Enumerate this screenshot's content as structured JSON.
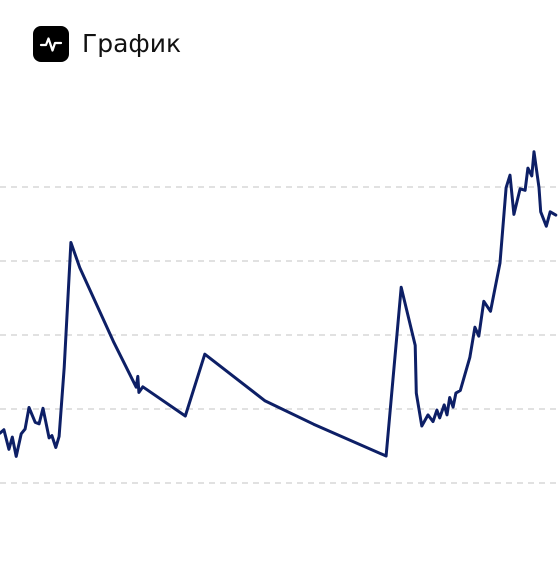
{
  "header": {
    "title": "График",
    "icon": "activity-pulse-icon"
  },
  "colors": {
    "line": "#0d1f66",
    "grid": "#cfcfcf",
    "icon_bg": "#000000",
    "icon_fg": "#ffffff"
  },
  "chart_data": {
    "type": "line",
    "title": "График",
    "xlabel": "",
    "ylabel": "",
    "grid": "horizontal-dashed",
    "axis_labels_visible": false,
    "xlim": [
      0,
      100
    ],
    "ylim": [
      0,
      100
    ],
    "gridlines_y": [
      0,
      20,
      40,
      60,
      80
    ],
    "series": [
      {
        "values": [
          [
            0.0,
            13.5
          ],
          [
            0.7,
            14.4
          ],
          [
            1.6,
            9.1
          ],
          [
            2.2,
            12.4
          ],
          [
            2.9,
            7.2
          ],
          [
            3.8,
            13.3
          ],
          [
            4.5,
            14.6
          ],
          [
            5.2,
            20.4
          ],
          [
            6.3,
            16.4
          ],
          [
            7.0,
            16.0
          ],
          [
            7.7,
            20.2
          ],
          [
            8.8,
            12.2
          ],
          [
            9.3,
            12.8
          ],
          [
            10.0,
            9.6
          ],
          [
            10.6,
            12.6
          ],
          [
            11.5,
            31.2
          ],
          [
            12.7,
            65.0
          ],
          [
            14.3,
            58.2
          ],
          [
            20.3,
            38.3
          ],
          [
            24.4,
            25.9
          ],
          [
            24.7,
            28.8
          ],
          [
            24.9,
            24.5
          ],
          [
            25.6,
            26.0
          ],
          [
            33.2,
            18.1
          ],
          [
            36.7,
            34.8
          ],
          [
            47.5,
            22.2
          ],
          [
            56.2,
            15.9
          ],
          [
            69.2,
            7.3
          ],
          [
            71.9,
            52.9
          ],
          [
            74.4,
            37.2
          ],
          [
            74.6,
            24.3
          ],
          [
            75.6,
            15.4
          ],
          [
            76.7,
            18.4
          ],
          [
            77.6,
            16.6
          ],
          [
            78.3,
            19.7
          ],
          [
            78.8,
            17.6
          ],
          [
            79.6,
            21.1
          ],
          [
            80.1,
            18.4
          ],
          [
            80.6,
            23.1
          ],
          [
            81.2,
            20.5
          ],
          [
            81.7,
            24.3
          ],
          [
            82.5,
            25.0
          ],
          [
            84.2,
            33.9
          ],
          [
            85.1,
            42.1
          ],
          [
            85.8,
            39.7
          ],
          [
            86.7,
            49.1
          ],
          [
            87.9,
            46.4
          ],
          [
            89.6,
            59.5
          ],
          [
            90.7,
            79.8
          ],
          [
            91.4,
            83.2
          ],
          [
            92.1,
            72.6
          ],
          [
            93.2,
            79.5
          ],
          [
            94.1,
            79.1
          ],
          [
            94.6,
            85.1
          ],
          [
            95.3,
            83.0
          ],
          [
            95.7,
            89.5
          ],
          [
            96.6,
            79.8
          ],
          [
            96.9,
            73.3
          ],
          [
            97.9,
            69.4
          ],
          [
            98.6,
            73.3
          ],
          [
            99.6,
            72.4
          ]
        ]
      }
    ]
  }
}
